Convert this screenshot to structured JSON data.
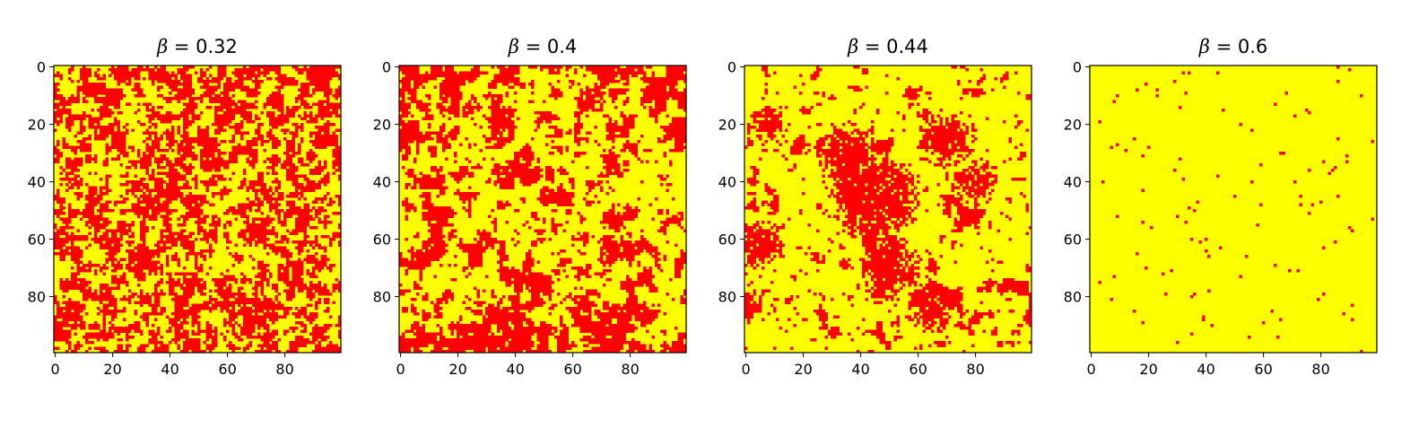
{
  "chart_data": [
    {
      "type": "heatmap",
      "title_symbol": "β",
      "title_value": "= 0.32",
      "beta": 0.32,
      "grid_size": 100,
      "value_colors": {
        "-1": "#ff0000",
        "1": "#ffff00"
      },
      "xticks": [
        0,
        20,
        40,
        60,
        80
      ],
      "yticks": [
        0,
        20,
        40,
        60,
        80
      ],
      "xlim": [
        0,
        99
      ],
      "ylim": [
        0,
        99
      ]
    },
    {
      "type": "heatmap",
      "title_symbol": "β",
      "title_value": "= 0.4",
      "beta": 0.4,
      "grid_size": 100,
      "value_colors": {
        "-1": "#ff0000",
        "1": "#ffff00"
      },
      "xticks": [
        0,
        20,
        40,
        60,
        80
      ],
      "yticks": [
        0,
        20,
        40,
        60,
        80
      ],
      "xlim": [
        0,
        99
      ],
      "ylim": [
        0,
        99
      ]
    },
    {
      "type": "heatmap",
      "title_symbol": "β",
      "title_value": "= 0.44",
      "beta": 0.44,
      "grid_size": 100,
      "value_colors": {
        "-1": "#ff0000",
        "1": "#ffff00"
      },
      "xticks": [
        0,
        20,
        40,
        60,
        80
      ],
      "yticks": [
        0,
        20,
        40,
        60,
        80
      ],
      "xlim": [
        0,
        99
      ],
      "ylim": [
        0,
        99
      ]
    },
    {
      "type": "heatmap",
      "title_symbol": "β",
      "title_value": "= 0.6",
      "beta": 0.6,
      "grid_size": 100,
      "value_colors": {
        "-1": "#ff0000",
        "1": "#ffff00"
      },
      "xticks": [
        0,
        20,
        40,
        60,
        80
      ],
      "yticks": [
        0,
        20,
        40,
        60,
        80
      ],
      "xlim": [
        0,
        99
      ],
      "ylim": [
        0,
        99
      ]
    }
  ]
}
